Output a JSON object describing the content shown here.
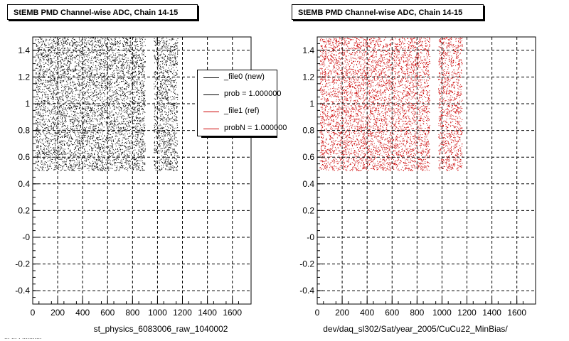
{
  "footer": "... ... . ...........",
  "legend": {
    "entries": [
      {
        "label": "_file0 (new)",
        "color": "#000000"
      },
      {
        "label": "prob = 1.000000",
        "color": "#000000"
      },
      {
        "label": "_file1 (ref)",
        "color": "#cc0000"
      },
      {
        "label": "probN = 1.000000",
        "color": "#cc0000"
      }
    ]
  },
  "chart_data": [
    {
      "type": "scatter",
      "title": "StEMB PMD Channel-wise ADC, Chain 14-15",
      "xlabel": "st_physics_6083006_raw_1040002",
      "ylabel": "",
      "xlim": [
        0,
        1750
      ],
      "ylim": [
        -0.5,
        1.5
      ],
      "xticks": [
        "0",
        "200",
        "400",
        "600",
        "800",
        "1000",
        "1200",
        "1400",
        "1600"
      ],
      "yticks": [
        "-0.4",
        "-0.2",
        "-0",
        "0.2",
        "0.4",
        "0.6",
        "0.8",
        "1",
        "1.2",
        "1.4"
      ],
      "grid": true,
      "point_color": "#000000",
      "point_y_range": [
        0.5,
        1.5
      ],
      "point_x_bands": [
        [
          20,
          900
        ],
        [
          970,
          1160
        ]
      ],
      "legend_position": "top-right"
    },
    {
      "type": "scatter",
      "title": "StEMB PMD Channel-wise ADC, Chain 14-15",
      "xlabel": "dev/daq_sl302/Sat/year_2005/CuCu22_MinBias/",
      "ylabel": "",
      "xlim": [
        0,
        1750
      ],
      "ylim": [
        -0.5,
        1.5
      ],
      "xticks": [
        "0",
        "200",
        "400",
        "600",
        "800",
        "1000",
        "1200",
        "1400",
        "1600"
      ],
      "yticks": [
        "-0.4",
        "-0.2",
        "-0",
        "0.2",
        "0.4",
        "0.6",
        "0.8",
        "1",
        "1.2",
        "1.4"
      ],
      "grid": true,
      "point_color": "#cc0000",
      "point_y_range": [
        0.5,
        1.5
      ],
      "point_x_bands": [
        [
          20,
          900
        ],
        [
          970,
          1160
        ]
      ]
    }
  ]
}
